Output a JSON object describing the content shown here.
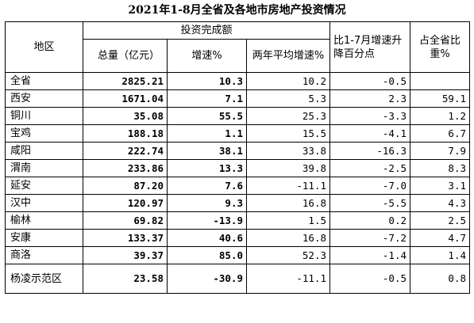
{
  "title": "2021年1-8月全省及各地市房地产投资情况",
  "headers": {
    "region": "地区",
    "group": "投资完成额",
    "total": "总量（亿元）",
    "growth": "增速%",
    "two_year": "两年平均增速%",
    "change": "比1-7月增速升降百分点",
    "share": "占全省比重%"
  },
  "rows": [
    {
      "region": "全省",
      "total": "2825.21",
      "growth": "10.3",
      "two_year": "10.2",
      "change": "-0.5",
      "share": ""
    },
    {
      "region": "西安",
      "total": "1671.04",
      "growth": "7.1",
      "two_year": "5.3",
      "change": "2.3",
      "share": "59.1"
    },
    {
      "region": "铜川",
      "total": "35.08",
      "growth": "55.5",
      "two_year": "25.3",
      "change": "-3.3",
      "share": "1.2"
    },
    {
      "region": "宝鸡",
      "total": "188.18",
      "growth": "1.1",
      "two_year": "15.5",
      "change": "-4.1",
      "share": "6.7"
    },
    {
      "region": "咸阳",
      "total": "222.74",
      "growth": "38.1",
      "two_year": "33.8",
      "change": "-16.3",
      "share": "7.9"
    },
    {
      "region": "渭南",
      "total": "233.86",
      "growth": "13.3",
      "two_year": "39.8",
      "change": "-2.5",
      "share": "8.3"
    },
    {
      "region": "延安",
      "total": "87.20",
      "growth": "7.6",
      "two_year": "-11.1",
      "change": "-7.0",
      "share": "3.1"
    },
    {
      "region": "汉中",
      "total": "120.97",
      "growth": "9.3",
      "two_year": "16.8",
      "change": "-5.5",
      "share": "4.3"
    },
    {
      "region": "榆林",
      "total": "69.82",
      "growth": "-13.9",
      "two_year": "1.5",
      "change": "0.2",
      "share": "2.5"
    },
    {
      "region": "安康",
      "total": "133.37",
      "growth": "40.6",
      "two_year": "16.8",
      "change": "-7.2",
      "share": "4.7"
    },
    {
      "region": "商洛",
      "total": "39.37",
      "growth": "85.0",
      "two_year": "52.3",
      "change": "-1.4",
      "share": "1.4"
    },
    {
      "region": "杨凌示范区",
      "total": "23.58",
      "growth": "-30.9",
      "two_year": "-11.1",
      "change": "-0.5",
      "share": "0.8"
    }
  ]
}
